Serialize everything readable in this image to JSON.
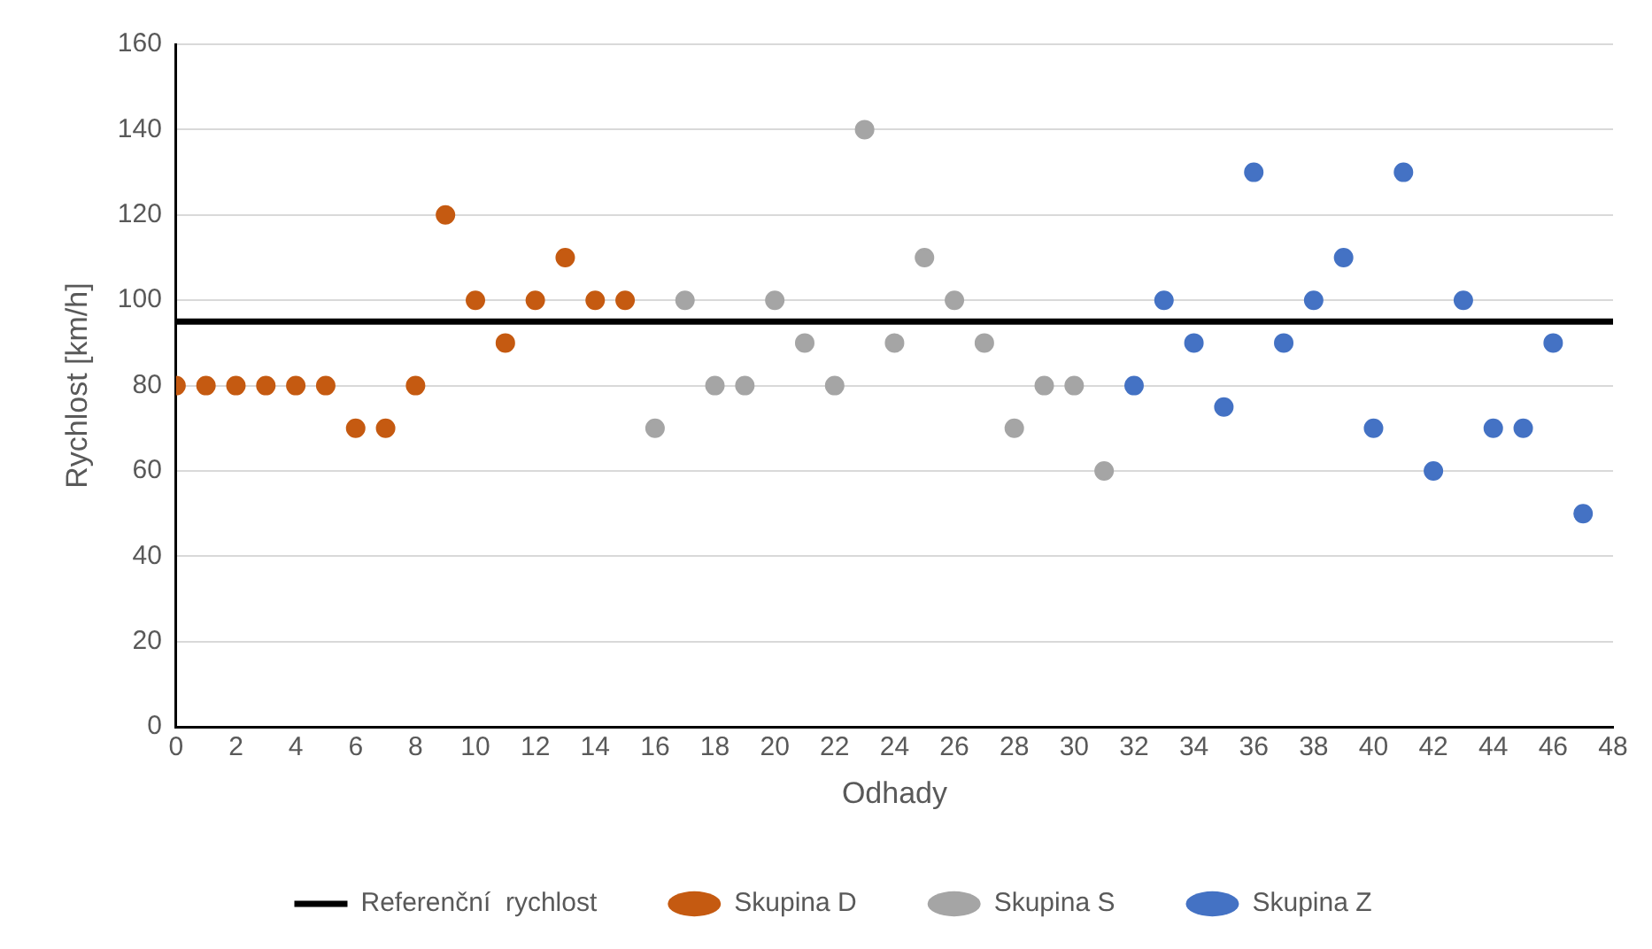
{
  "chart_data": {
    "type": "scatter",
    "xlabel": "Odhady",
    "ylabel": "Rychlost [km/h]",
    "xlim": [
      0,
      48
    ],
    "xticks": [
      0,
      2,
      4,
      6,
      8,
      10,
      12,
      14,
      16,
      18,
      20,
      22,
      24,
      26,
      28,
      30,
      32,
      34,
      36,
      38,
      40,
      42,
      44,
      46,
      48
    ],
    "ylim": [
      0,
      160
    ],
    "yticks": [
      0,
      20,
      40,
      60,
      80,
      100,
      120,
      140,
      160
    ],
    "grid": "y",
    "legend": "bottom",
    "marker": "circle",
    "series": [
      {
        "name": "Referenční  rychlost",
        "type": "line",
        "marker": "none",
        "color": "#000000",
        "x": [
          0,
          48
        ],
        "values": [
          95,
          95
        ]
      },
      {
        "name": "Skupina D",
        "color": "#c55a11",
        "x": [
          0,
          1,
          2,
          3,
          4,
          5,
          6,
          7,
          8,
          9,
          10,
          11,
          12,
          13,
          14,
          15
        ],
        "values": [
          80,
          80,
          80,
          80,
          80,
          80,
          70,
          70,
          80,
          120,
          100,
          90,
          100,
          110,
          100,
          100
        ]
      },
      {
        "name": "Skupina S",
        "color": "#a5a5a5",
        "x": [
          16,
          17,
          18,
          19,
          20,
          21,
          22,
          23,
          24,
          25,
          26,
          27,
          28,
          29,
          30,
          31
        ],
        "values": [
          70,
          100,
          80,
          80,
          100,
          90,
          80,
          140,
          90,
          110,
          100,
          90,
          70,
          80,
          80,
          60
        ]
      },
      {
        "name": "Skupina Z",
        "color": "#4472c4",
        "x": [
          32,
          33,
          34,
          35,
          36,
          37,
          38,
          39,
          40,
          41,
          42,
          43,
          44,
          45,
          46,
          47
        ],
        "values": [
          80,
          100,
          90,
          75,
          130,
          90,
          100,
          110,
          70,
          130,
          60,
          100,
          70,
          70,
          90,
          50
        ]
      }
    ]
  }
}
